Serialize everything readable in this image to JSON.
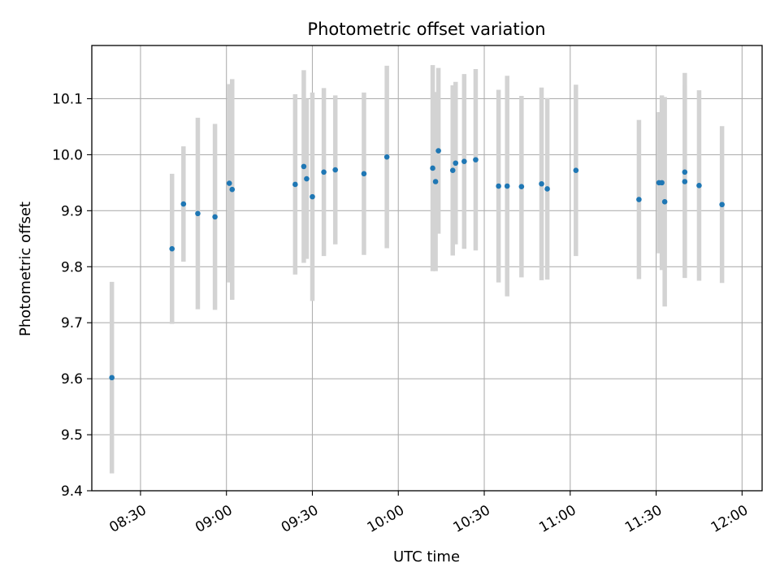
{
  "chart_data": {
    "type": "scatter",
    "title": "Photometric offset variation",
    "xlabel": "UTC time",
    "ylabel": "Photometric offset",
    "x_axis_kind": "time",
    "xlim": [
      "08:13",
      "12:07"
    ],
    "ylim": [
      9.4,
      10.2
    ],
    "grid": true,
    "x_ticks": [
      "08:30",
      "09:00",
      "09:30",
      "10:00",
      "10:30",
      "11:00",
      "11:30",
      "12:00"
    ],
    "y_ticks": [
      "9.4",
      "9.5",
      "9.6",
      "9.7",
      "9.8",
      "9.9",
      "10.0",
      "10.1"
    ],
    "colors": {
      "point": "#1f77b4",
      "errorbar": "#d3d3d3",
      "grid": "#b0b0b0"
    },
    "series": [
      {
        "points": [
          {
            "t": "08:20",
            "y": 9.602,
            "err": 0.171
          },
          {
            "t": "08:41",
            "y": 9.832,
            "err": 0.134
          },
          {
            "t": "08:45",
            "y": 9.912,
            "err": 0.103
          },
          {
            "t": "08:50",
            "y": 9.895,
            "err": 0.171
          },
          {
            "t": "08:56",
            "y": 9.889,
            "err": 0.166
          },
          {
            "t": "09:01",
            "y": 9.949,
            "err": 0.177
          },
          {
            "t": "09:02",
            "y": 9.938,
            "err": 0.197
          },
          {
            "t": "09:24",
            "y": 9.947,
            "err": 0.161
          },
          {
            "t": "09:27",
            "y": 9.979,
            "err": 0.172
          },
          {
            "t": "09:28",
            "y": 9.957,
            "err": 0.143
          },
          {
            "t": "09:30",
            "y": 9.925,
            "err": 0.186
          },
          {
            "t": "09:34",
            "y": 9.969,
            "err": 0.15
          },
          {
            "t": "09:38",
            "y": 9.973,
            "err": 0.133
          },
          {
            "t": "09:48",
            "y": 9.966,
            "err": 0.145
          },
          {
            "t": "09:56",
            "y": 9.996,
            "err": 0.163
          },
          {
            "t": "10:12",
            "y": 9.976,
            "err": 0.184
          },
          {
            "t": "10:13",
            "y": 9.952,
            "err": 0.16
          },
          {
            "t": "10:14",
            "y": 10.007,
            "err": 0.148
          },
          {
            "t": "10:19",
            "y": 9.972,
            "err": 0.152
          },
          {
            "t": "10:20",
            "y": 9.985,
            "err": 0.145
          },
          {
            "t": "10:23",
            "y": 9.988,
            "err": 0.156
          },
          {
            "t": "10:27",
            "y": 9.991,
            "err": 0.162
          },
          {
            "t": "10:35",
            "y": 9.944,
            "err": 0.172
          },
          {
            "t": "10:38",
            "y": 9.944,
            "err": 0.197
          },
          {
            "t": "10:43",
            "y": 9.943,
            "err": 0.162
          },
          {
            "t": "10:50",
            "y": 9.948,
            "err": 0.172
          },
          {
            "t": "10:52",
            "y": 9.939,
            "err": 0.162
          },
          {
            "t": "11:02",
            "y": 9.972,
            "err": 0.153
          },
          {
            "t": "11:24",
            "y": 9.92,
            "err": 0.142
          },
          {
            "t": "11:31",
            "y": 9.95,
            "err": 0.126
          },
          {
            "t": "11:32",
            "y": 9.95,
            "err": 0.156
          },
          {
            "t": "11:33",
            "y": 9.916,
            "err": 0.187
          },
          {
            "t": "11:40",
            "y": 9.969,
            "err": 0.177
          },
          {
            "t": "11:40",
            "y": 9.952,
            "err": 0.172
          },
          {
            "t": "11:45",
            "y": 9.945,
            "err": 0.17
          },
          {
            "t": "11:53",
            "y": 9.911,
            "err": 0.14
          }
        ]
      }
    ]
  }
}
